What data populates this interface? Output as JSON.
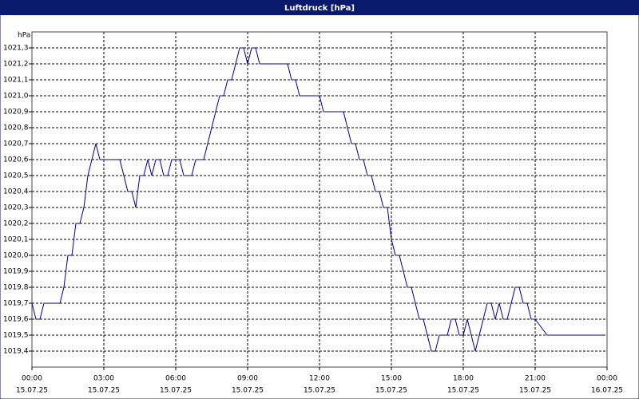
{
  "chart_data": {
    "type": "line",
    "title": "Luftdruck [hPa]",
    "y_label": "hPa",
    "x": [
      0,
      10,
      20,
      30,
      70,
      80,
      90,
      100,
      110,
      120,
      130,
      140,
      150,
      160,
      170,
      220,
      230,
      240,
      250,
      260,
      270,
      280,
      290,
      300,
      310,
      320,
      330,
      340,
      350,
      370,
      380,
      400,
      410,
      430,
      440,
      450,
      460,
      470,
      480,
      490,
      500,
      510,
      520,
      530,
      540,
      550,
      560,
      570,
      580,
      640,
      650,
      660,
      670,
      720,
      730,
      780,
      790,
      800,
      810,
      820,
      830,
      840,
      850,
      860,
      870,
      880,
      890,
      900,
      910,
      920,
      930,
      940,
      950,
      960,
      970,
      980,
      990,
      1000,
      1010,
      1020,
      1040,
      1050,
      1060,
      1070,
      1080,
      1090,
      1100,
      1110,
      1120,
      1130,
      1140,
      1150,
      1160,
      1170,
      1180,
      1190,
      1200,
      1210,
      1220,
      1230,
      1240,
      1250,
      1260,
      1290,
      1300,
      1310,
      1320,
      1340,
      1350,
      1360,
      1370,
      1380,
      1400,
      1410,
      1420,
      1430
    ],
    "series": [
      {
        "name": "Luftdruck",
        "color": "#00008b",
        "values": [
          1019.7,
          1019.6,
          1019.6,
          1019.7,
          1019.7,
          1019.8,
          1020.0,
          1020.0,
          1020.2,
          1020.2,
          1020.3,
          1020.5,
          1020.6,
          1020.7,
          1020.6,
          1020.6,
          1020.5,
          1020.4,
          1020.4,
          1020.3,
          1020.5,
          1020.5,
          1020.6,
          1020.5,
          1020.6,
          1020.6,
          1020.5,
          1020.5,
          1020.6,
          1020.6,
          1020.5,
          1020.5,
          1020.6,
          1020.6,
          1020.7,
          1020.8,
          1020.9,
          1021.0,
          1021.0,
          1021.1,
          1021.1,
          1021.2,
          1021.3,
          1021.3,
          1021.2,
          1021.3,
          1021.3,
          1021.2,
          1021.2,
          1021.2,
          1021.1,
          1021.1,
          1021.0,
          1021.0,
          1020.9,
          1020.9,
          1020.8,
          1020.7,
          1020.7,
          1020.6,
          1020.6,
          1020.5,
          1020.5,
          1020.4,
          1020.4,
          1020.3,
          1020.3,
          1020.1,
          1020.0,
          1020.0,
          1019.9,
          1019.8,
          1019.8,
          1019.7,
          1019.6,
          1019.6,
          1019.5,
          1019.4,
          1019.4,
          1019.5,
          1019.5,
          1019.6,
          1019.6,
          1019.5,
          1019.5,
          1019.6,
          1019.5,
          1019.4,
          1019.5,
          1019.6,
          1019.7,
          1019.7,
          1019.6,
          1019.7,
          1019.6,
          1019.6,
          1019.7,
          1019.8,
          1019.8,
          1019.7,
          1019.7,
          1019.6,
          1019.6,
          1019.5,
          1019.5,
          1019.5,
          1019.5,
          1019.5,
          1019.5,
          1019.5,
          1019.5,
          1019.5,
          1019.5,
          1019.5,
          1019.5,
          1019.5
        ]
      }
    ],
    "xlim": [
      0,
      1440
    ],
    "xticks": [
      {
        "value": 0,
        "label": "00:00"
      },
      {
        "value": 180,
        "label": "03:00"
      },
      {
        "value": 360,
        "label": "06:00"
      },
      {
        "value": 540,
        "label": "09:00"
      },
      {
        "value": 720,
        "label": "12:00"
      },
      {
        "value": 900,
        "label": "15:00"
      },
      {
        "value": 1080,
        "label": "18:00"
      },
      {
        "value": 1260,
        "label": "21:00"
      },
      {
        "value": 1440,
        "label": "00:00"
      }
    ],
    "xtick_dates": [
      "15.07.25",
      "15.07.25",
      "15.07.25",
      "15.07.25",
      "15.07.25",
      "15.07.25",
      "15.07.25",
      "15.07.25",
      "16.07.25"
    ],
    "ylim": [
      1019.3,
      1021.4
    ],
    "yticks": [
      {
        "value": 1019.4,
        "label": "1019,4"
      },
      {
        "value": 1019.5,
        "label": "1019,5"
      },
      {
        "value": 1019.6,
        "label": "1019,6"
      },
      {
        "value": 1019.7,
        "label": "1019,7"
      },
      {
        "value": 1019.8,
        "label": "1019,8"
      },
      {
        "value": 1019.9,
        "label": "1019,9"
      },
      {
        "value": 1020.0,
        "label": "1020,0"
      },
      {
        "value": 1020.1,
        "label": "1020,1"
      },
      {
        "value": 1020.2,
        "label": "1020,2"
      },
      {
        "value": 1020.3,
        "label": "1020,3"
      },
      {
        "value": 1020.4,
        "label": "1020,4"
      },
      {
        "value": 1020.5,
        "label": "1020,5"
      },
      {
        "value": 1020.6,
        "label": "1020,6"
      },
      {
        "value": 1020.7,
        "label": "1020,7"
      },
      {
        "value": 1020.8,
        "label": "1020,8"
      },
      {
        "value": 1020.9,
        "label": "1020,9"
      },
      {
        "value": 1021.0,
        "label": "1021,0"
      },
      {
        "value": 1021.1,
        "label": "1021,1"
      },
      {
        "value": 1021.2,
        "label": "1021,2"
      },
      {
        "value": 1021.3,
        "label": "1021,3"
      }
    ],
    "grid": true
  }
}
